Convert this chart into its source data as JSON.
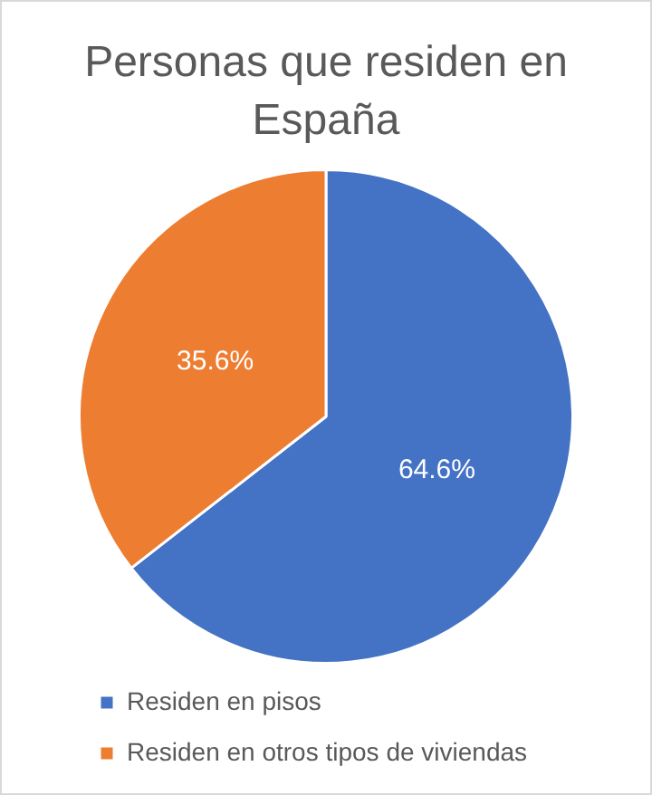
{
  "chart_data": {
    "type": "pie",
    "title": "Personas que residen en España",
    "categories": [
      "Residen en pisos",
      "Residen en otros tipos de viviendas"
    ],
    "values": [
      64.6,
      35.6
    ],
    "colors": [
      "#4472c4",
      "#ed7d31"
    ],
    "value_labels": [
      "64.6%",
      "35.6%"
    ],
    "legend": "bottom"
  }
}
